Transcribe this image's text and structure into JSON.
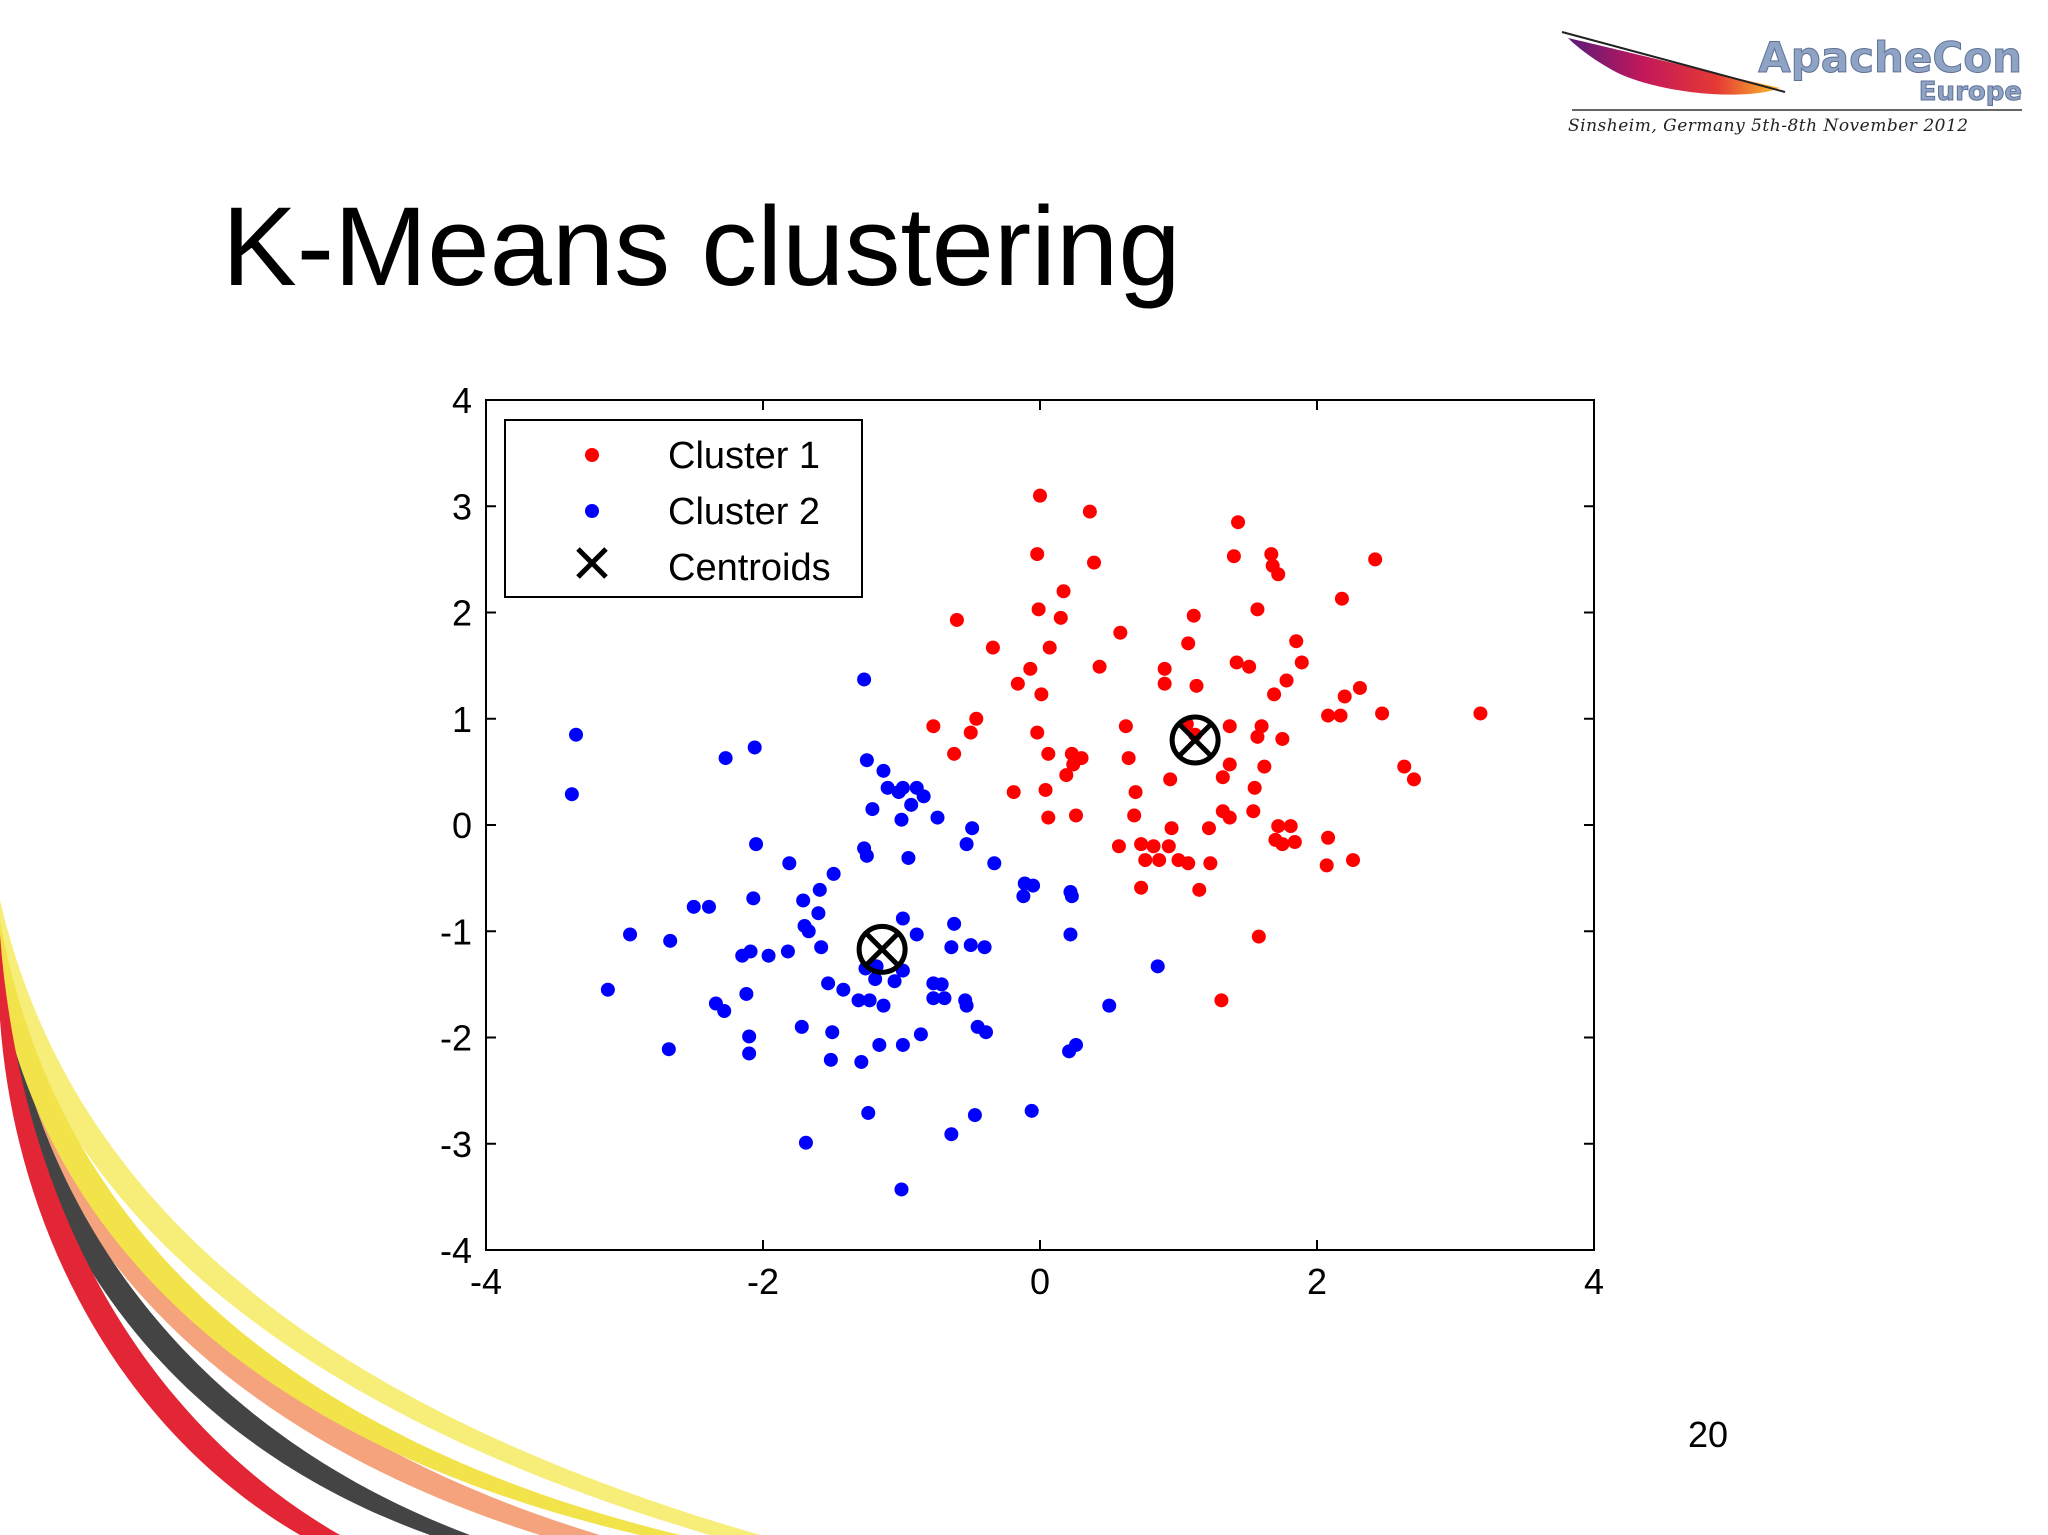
{
  "slide": {
    "title": "K-Means clustering",
    "page_number": "20"
  },
  "logo": {
    "word1": "ApacheCon",
    "word2": "Europe",
    "subtitle": "Sinsheim, Germany 5th-8th November 2012"
  },
  "colors": {
    "cluster1": "#ff0000",
    "cluster2": "#0000ff",
    "centroid": "#000000",
    "swoosh": [
      "#e32636",
      "#f2e34a",
      "#444444",
      "#f4a37c",
      "#f7ee7a"
    ]
  },
  "chart_data": {
    "type": "scatter",
    "xlim": [
      -4,
      4
    ],
    "ylim": [
      -4,
      4
    ],
    "xticks": [
      -4,
      -2,
      0,
      2,
      4
    ],
    "yticks": [
      -4,
      -3,
      -2,
      -1,
      0,
      1,
      2,
      3,
      4
    ],
    "grid": false,
    "legend_position": "top-left",
    "series": [
      {
        "name": "Cluster 1",
        "marker": "dot",
        "color": "#ff0000",
        "points": [
          [
            0.0,
            3.1
          ],
          [
            0.36,
            2.95
          ],
          [
            1.43,
            2.85
          ],
          [
            1.67,
            2.55
          ],
          [
            2.42,
            2.5
          ],
          [
            -0.02,
            2.55
          ],
          [
            0.39,
            2.47
          ],
          [
            1.4,
            2.53
          ],
          [
            1.68,
            2.44
          ],
          [
            1.72,
            2.36
          ],
          [
            0.17,
            2.2
          ],
          [
            2.18,
            2.13
          ],
          [
            -0.01,
            2.03
          ],
          [
            0.15,
            1.95
          ],
          [
            1.11,
            1.97
          ],
          [
            1.57,
            2.03
          ],
          [
            -0.6,
            1.93
          ],
          [
            0.58,
            1.81
          ],
          [
            1.85,
            1.73
          ],
          [
            1.07,
            1.71
          ],
          [
            -0.34,
            1.67
          ],
          [
            0.07,
            1.67
          ],
          [
            -0.07,
            1.47
          ],
          [
            0.43,
            1.49
          ],
          [
            0.9,
            1.47
          ],
          [
            1.42,
            1.53
          ],
          [
            1.51,
            1.49
          ],
          [
            1.89,
            1.53
          ],
          [
            1.78,
            1.36
          ],
          [
            -0.16,
            1.33
          ],
          [
            0.9,
            1.33
          ],
          [
            1.13,
            1.31
          ],
          [
            1.69,
            1.23
          ],
          [
            2.2,
            1.21
          ],
          [
            2.31,
            1.29
          ],
          [
            0.01,
            1.23
          ],
          [
            -0.77,
            0.93
          ],
          [
            -0.46,
            1.0
          ],
          [
            0.62,
            0.93
          ],
          [
            1.06,
            0.95
          ],
          [
            1.37,
            0.93
          ],
          [
            1.6,
            0.93
          ],
          [
            2.08,
            1.03
          ],
          [
            2.17,
            1.03
          ],
          [
            2.47,
            1.05
          ],
          [
            3.18,
            1.05
          ],
          [
            -0.02,
            0.87
          ],
          [
            -0.5,
            0.87
          ],
          [
            0.23,
            0.67
          ],
          [
            0.3,
            0.63
          ],
          [
            0.06,
            0.67
          ],
          [
            -0.62,
            0.67
          ],
          [
            1.57,
            0.83
          ],
          [
            1.75,
            0.81
          ],
          [
            0.64,
            0.63
          ],
          [
            1.12,
            0.85
          ],
          [
            0.24,
            0.57
          ],
          [
            1.37,
            0.57
          ],
          [
            2.63,
            0.55
          ],
          [
            2.7,
            0.43
          ],
          [
            0.19,
            0.47
          ],
          [
            0.94,
            0.43
          ],
          [
            1.32,
            0.45
          ],
          [
            1.62,
            0.55
          ],
          [
            -0.19,
            0.31
          ],
          [
            0.04,
            0.33
          ],
          [
            0.69,
            0.31
          ],
          [
            1.55,
            0.35
          ],
          [
            0.06,
            0.07
          ],
          [
            0.26,
            0.09
          ],
          [
            0.68,
            0.09
          ],
          [
            1.37,
            0.07
          ],
          [
            1.32,
            0.13
          ],
          [
            1.54,
            0.13
          ],
          [
            1.22,
            -0.03
          ],
          [
            0.95,
            -0.03
          ],
          [
            1.72,
            -0.01
          ],
          [
            1.81,
            -0.01
          ],
          [
            0.73,
            -0.18
          ],
          [
            0.57,
            -0.2
          ],
          [
            0.82,
            -0.2
          ],
          [
            0.93,
            -0.2
          ],
          [
            1.7,
            -0.14
          ],
          [
            1.75,
            -0.18
          ],
          [
            1.84,
            -0.16
          ],
          [
            2.08,
            -0.12
          ],
          [
            0.76,
            -0.33
          ],
          [
            0.86,
            -0.33
          ],
          [
            1.0,
            -0.33
          ],
          [
            1.07,
            -0.36
          ],
          [
            1.23,
            -0.36
          ],
          [
            2.07,
            -0.38
          ],
          [
            2.26,
            -0.33
          ],
          [
            0.73,
            -0.59
          ],
          [
            1.15,
            -0.61
          ],
          [
            1.58,
            -1.05
          ],
          [
            1.31,
            -1.65
          ]
        ]
      },
      {
        "name": "Cluster 2",
        "marker": "dot",
        "color": "#0000ff",
        "points": [
          [
            -1.27,
            1.37
          ],
          [
            -3.35,
            0.85
          ],
          [
            -2.06,
            0.73
          ],
          [
            -2.27,
            0.63
          ],
          [
            -1.25,
            0.61
          ],
          [
            -1.13,
            0.51
          ],
          [
            -3.38,
            0.29
          ],
          [
            -1.1,
            0.35
          ],
          [
            -0.99,
            0.35
          ],
          [
            -0.89,
            0.35
          ],
          [
            -1.02,
            0.31
          ],
          [
            -1.21,
            0.15
          ],
          [
            -0.84,
            0.27
          ],
          [
            -0.93,
            0.19
          ],
          [
            -1.0,
            0.05
          ],
          [
            -0.74,
            0.07
          ],
          [
            -0.49,
            -0.03
          ],
          [
            -1.27,
            -0.22
          ],
          [
            -1.25,
            -0.29
          ],
          [
            -2.05,
            -0.18
          ],
          [
            -0.95,
            -0.31
          ],
          [
            -0.53,
            -0.18
          ],
          [
            -1.81,
            -0.36
          ],
          [
            -1.49,
            -0.46
          ],
          [
            -0.33,
            -0.36
          ],
          [
            -1.59,
            -0.61
          ],
          [
            -1.71,
            -0.71
          ],
          [
            -2.07,
            -0.69
          ],
          [
            -0.11,
            -0.55
          ],
          [
            -0.05,
            -0.57
          ],
          [
            0.22,
            -0.63
          ],
          [
            0.23,
            -0.67
          ],
          [
            -2.5,
            -0.77
          ],
          [
            -2.39,
            -0.77
          ],
          [
            -1.6,
            -0.83
          ],
          [
            -0.12,
            -0.67
          ],
          [
            -1.7,
            -0.95
          ],
          [
            -1.67,
            -1.0
          ],
          [
            -0.62,
            -0.93
          ],
          [
            -0.99,
            -0.88
          ],
          [
            -2.96,
            -1.03
          ],
          [
            -2.67,
            -1.09
          ],
          [
            -1.58,
            -1.15
          ],
          [
            -0.89,
            -1.03
          ],
          [
            -1.82,
            -1.19
          ],
          [
            -2.09,
            -1.19
          ],
          [
            -2.15,
            -1.23
          ],
          [
            -1.96,
            -1.23
          ],
          [
            -0.5,
            -1.13
          ],
          [
            -0.4,
            -1.15
          ],
          [
            -0.64,
            -1.15
          ],
          [
            0.22,
            -1.03
          ],
          [
            -1.26,
            -1.35
          ],
          [
            -1.18,
            -1.33
          ],
          [
            -0.99,
            -1.37
          ],
          [
            -1.05,
            -1.47
          ],
          [
            -1.19,
            -1.45
          ],
          [
            -1.53,
            -1.49
          ],
          [
            -0.77,
            -1.49
          ],
          [
            -0.71,
            -1.5
          ],
          [
            -3.12,
            -1.55
          ],
          [
            -2.12,
            -1.59
          ],
          [
            -1.42,
            -1.55
          ],
          [
            -1.31,
            -1.65
          ],
          [
            -1.23,
            -1.65
          ],
          [
            -1.13,
            -1.7
          ],
          [
            -0.77,
            -1.63
          ],
          [
            -0.69,
            -1.63
          ],
          [
            -0.54,
            -1.65
          ],
          [
            -0.53,
            -1.7
          ],
          [
            0.85,
            -1.33
          ],
          [
            0.5,
            -1.7
          ],
          [
            -2.34,
            -1.68
          ],
          [
            -2.28,
            -1.75
          ],
          [
            -1.72,
            -1.9
          ],
          [
            -1.5,
            -1.95
          ],
          [
            -0.45,
            -1.9
          ],
          [
            -0.39,
            -1.95
          ],
          [
            -2.1,
            -1.99
          ],
          [
            -2.1,
            -2.15
          ],
          [
            -1.16,
            -2.07
          ],
          [
            -0.99,
            -2.07
          ],
          [
            -0.86,
            -1.97
          ],
          [
            -1.51,
            -2.21
          ],
          [
            -1.29,
            -2.23
          ],
          [
            -2.68,
            -2.11
          ],
          [
            0.26,
            -2.07
          ],
          [
            0.21,
            -2.13
          ],
          [
            -1.24,
            -2.71
          ],
          [
            -0.47,
            -2.73
          ],
          [
            -0.06,
            -2.69
          ],
          [
            -1.69,
            -2.99
          ],
          [
            -0.64,
            -2.91
          ],
          [
            -1.0,
            -3.43
          ]
        ]
      },
      {
        "name": "Centroids",
        "marker": "x",
        "color": "#000000",
        "points": [
          [
            1.12,
            0.8
          ],
          [
            -1.14,
            -1.17
          ]
        ]
      }
    ]
  }
}
